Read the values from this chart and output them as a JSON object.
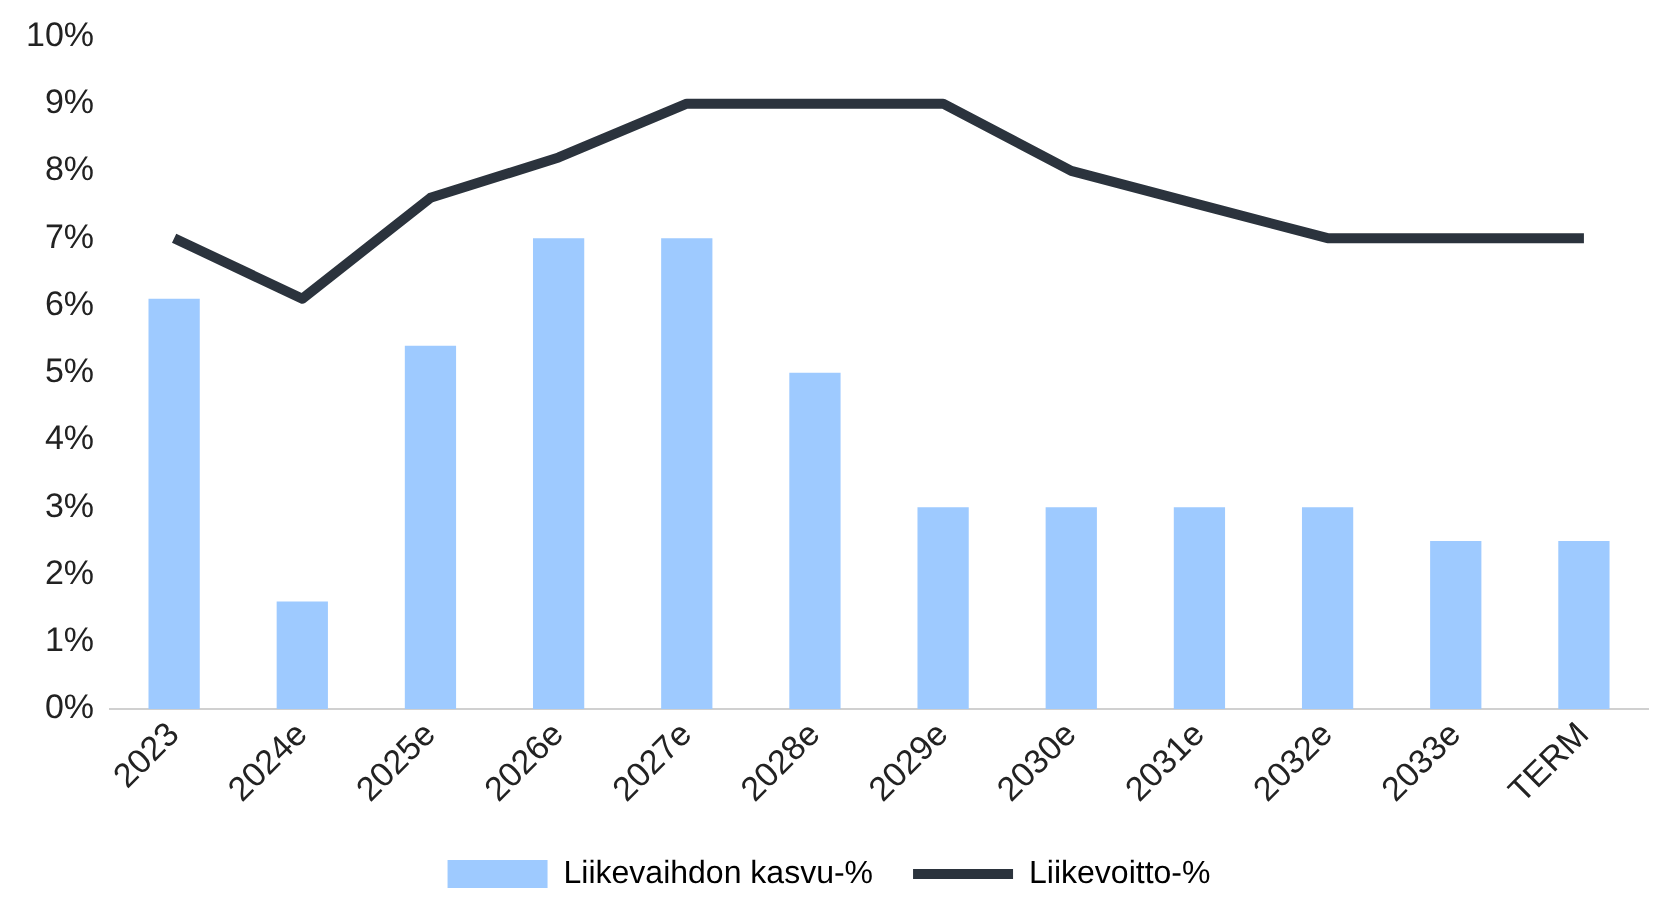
{
  "chart_data": {
    "type": "bar",
    "categories": [
      "2023",
      "2024e",
      "2025e",
      "2026e",
      "2027e",
      "2028e",
      "2029e",
      "2030e",
      "2031e",
      "2032e",
      "2033e",
      "TERM"
    ],
    "series": [
      {
        "name": "Liikevaihdon kasvu-%",
        "color": "#9ecaff",
        "values": [
          6.1,
          1.6,
          5.4,
          7.0,
          7.0,
          5.0,
          3.0,
          3.0,
          3.0,
          3.0,
          2.5,
          2.5
        ]
      },
      {
        "name": "Liikevoitto-%",
        "type": "line",
        "color": "#2b333d",
        "values": [
          7.0,
          6.1,
          7.6,
          8.2,
          9.0,
          9.0,
          9.0,
          8.0,
          7.5,
          7.0,
          7.0,
          7.0
        ]
      }
    ],
    "ylim": [
      0,
      10
    ],
    "yticks": [
      {
        "value": 0,
        "label": "0%"
      },
      {
        "value": 1,
        "label": "1%"
      },
      {
        "value": 2,
        "label": "2%"
      },
      {
        "value": 3,
        "label": "3%"
      },
      {
        "value": 4,
        "label": "4%"
      },
      {
        "value": 5,
        "label": "5%"
      },
      {
        "value": 6,
        "label": "6%"
      },
      {
        "value": 7,
        "label": "7%"
      },
      {
        "value": 8,
        "label": "8%"
      },
      {
        "value": 9,
        "label": "9%"
      },
      {
        "value": 10,
        "label": "10%"
      }
    ],
    "grid": false,
    "legend": "bottom",
    "marker": "none",
    "line_style": "solid"
  }
}
